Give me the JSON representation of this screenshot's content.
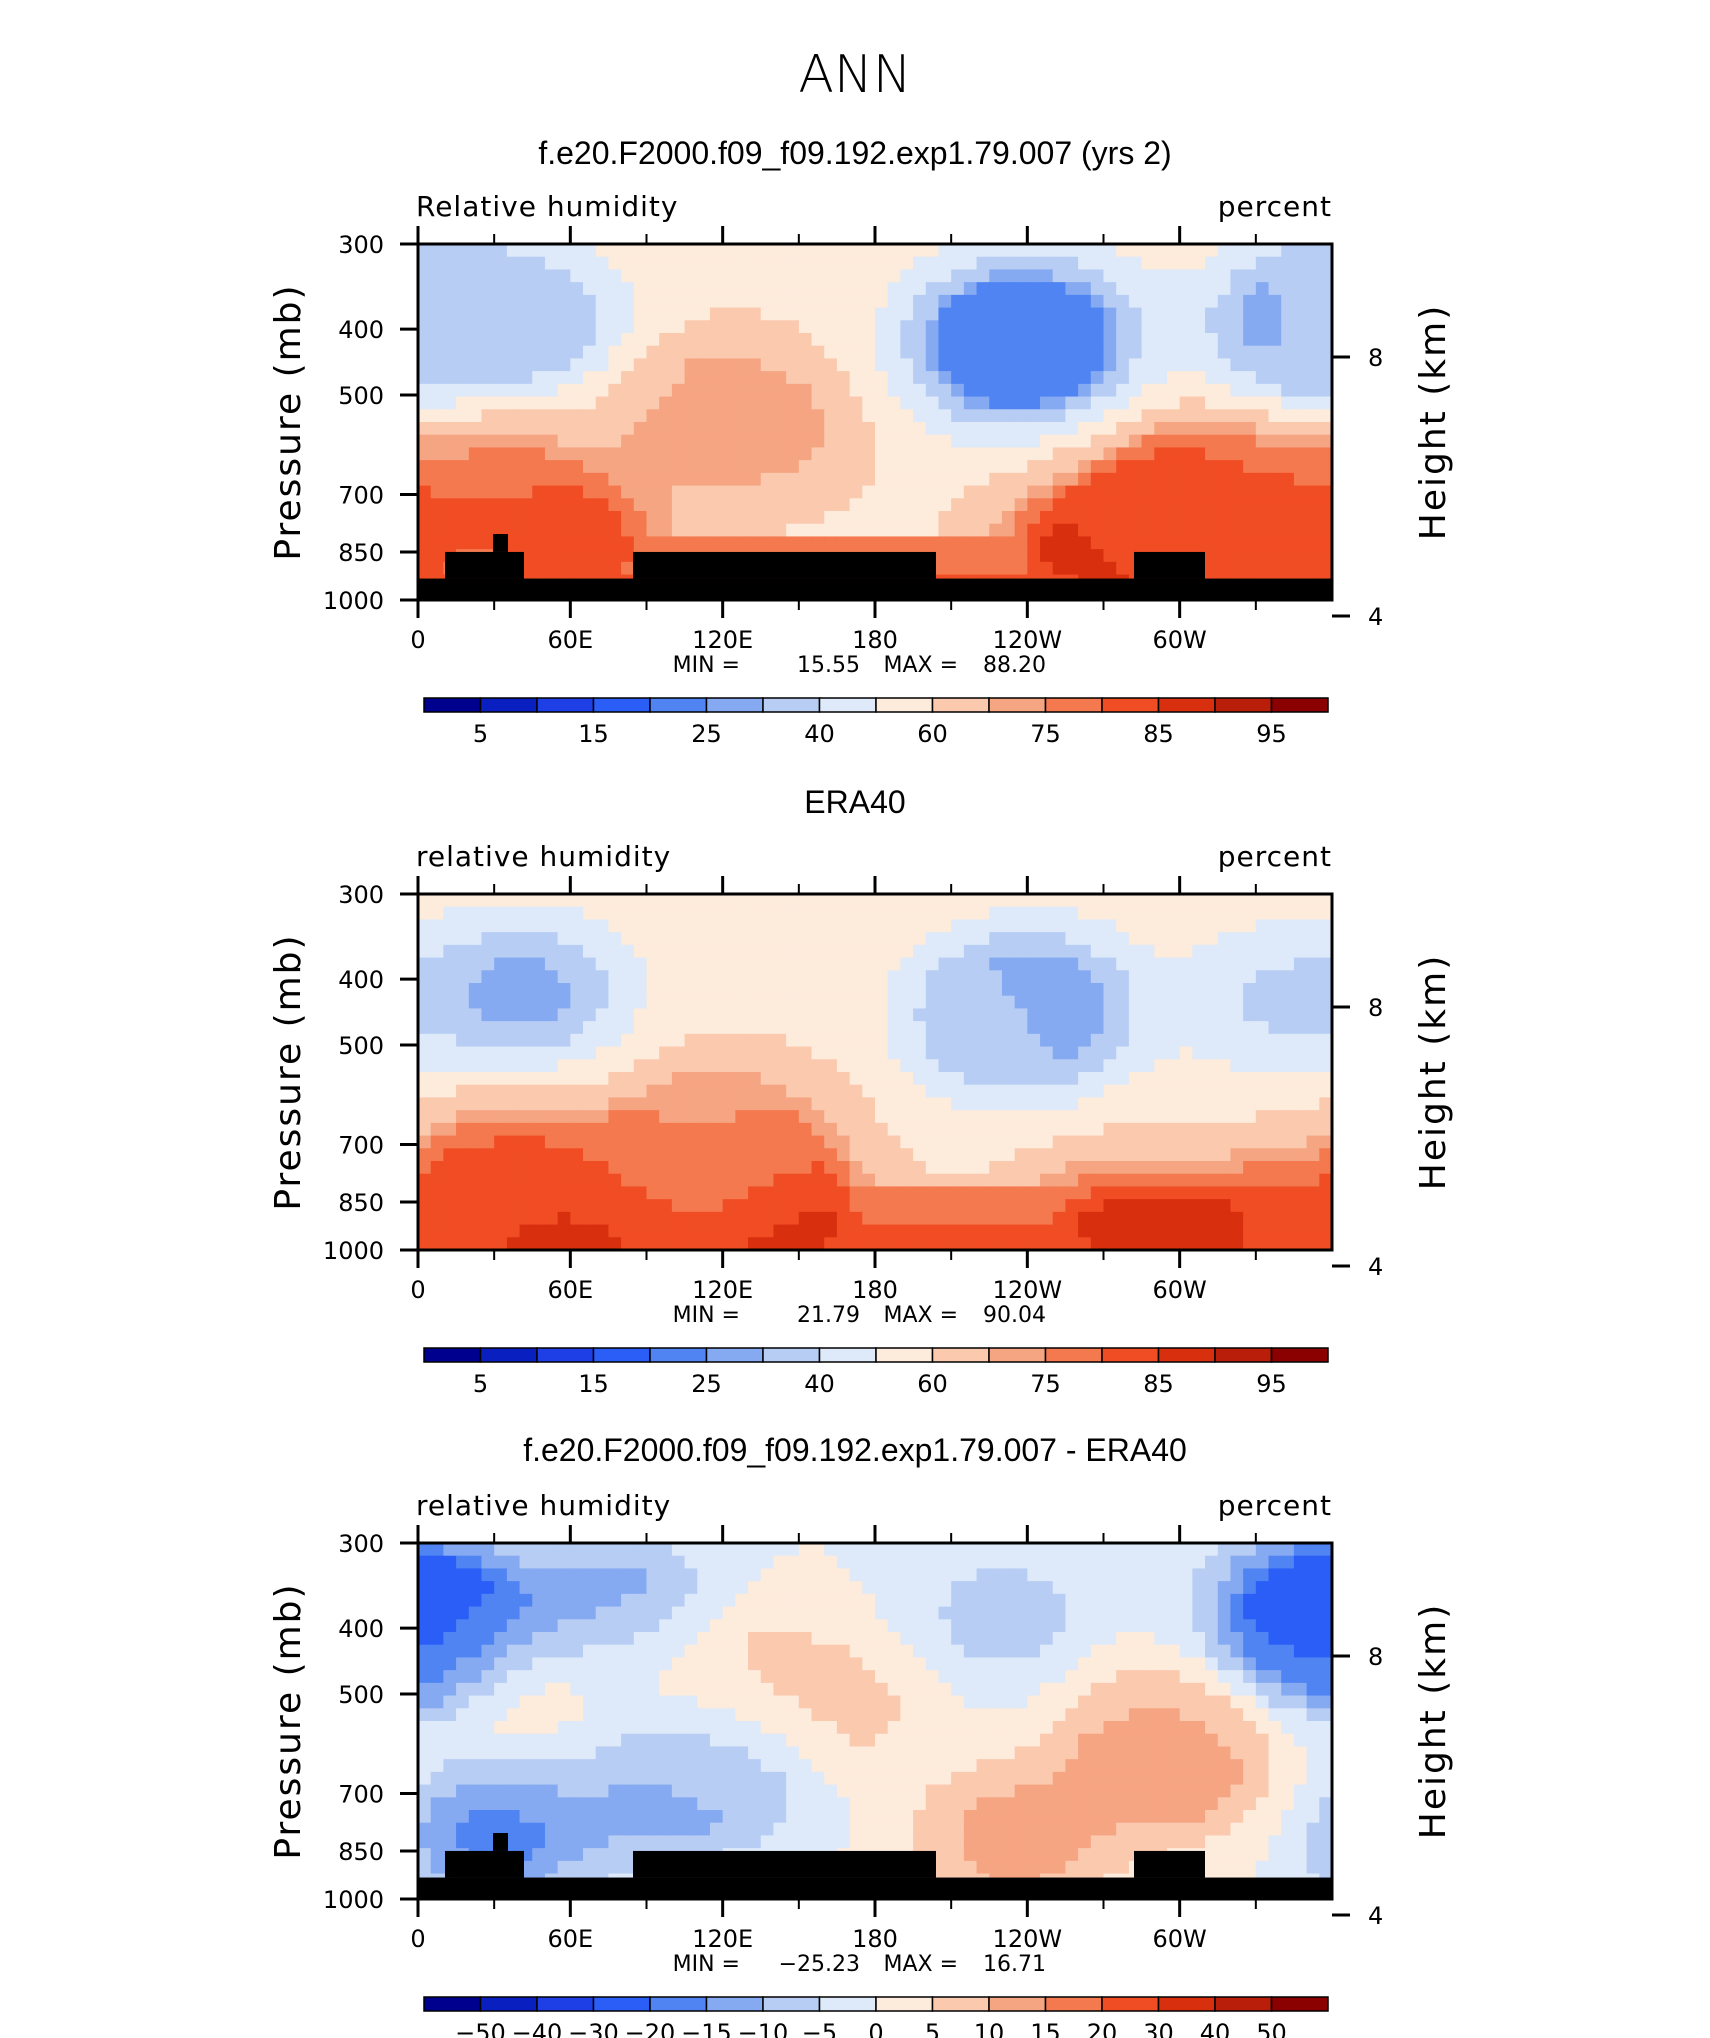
{
  "figure_title": "ANN",
  "colors": {
    "land_mask": "#000000",
    "abs_scale": [
      "#00008f",
      "#0a1fbf",
      "#1e3ee6",
      "#2a5ef7",
      "#4f84f2",
      "#86aaf1",
      "#b7cdf4",
      "#deeaf9",
      "#fdebdc",
      "#fac9ae",
      "#f6a583",
      "#f4794f",
      "#f14d24",
      "#d82f0e",
      "#b91e0b",
      "#8b0000"
    ],
    "diff_scale": [
      "#00008f",
      "#0a1fbf",
      "#1e3ee6",
      "#2a5ef7",
      "#4f84f2",
      "#86aaf1",
      "#b7cdf4",
      "#deeaf9",
      "#fdebdc",
      "#fac9ae",
      "#f6a583",
      "#f4794f",
      "#f14d24",
      "#d82f0e",
      "#b91e0b",
      "#8b0000"
    ]
  },
  "chart_data": [
    {
      "type": "heatmap",
      "title": "f.e20.F2000.f09_f09.192.exp1.79.007 (yrs 2)",
      "left_label": "Relative humidity",
      "right_label": "percent",
      "ylabel": "Pressure (mb)",
      "y2label": "Height (km)",
      "x_ticks": [
        "0",
        "60E",
        "120E",
        "180",
        "120W",
        "60W"
      ],
      "y_ticks": [
        "300",
        "400",
        "500",
        "700",
        "850",
        "1000"
      ],
      "y2_ticks": [
        "8",
        "4"
      ],
      "xlim": [
        0,
        360
      ],
      "ylim": [
        1000,
        300
      ],
      "y_scale": "log",
      "stats": {
        "min_label": "MIN =",
        "min": "15.55",
        "max_label": "MAX =",
        "max": "88.20"
      },
      "colorbar_labels": [
        "5",
        "15",
        "25",
        "40",
        "60",
        "75",
        "85",
        "95"
      ],
      "land_mask": true,
      "fields": [
        {
          "lon": 3,
          "p": 380,
          "value": 40
        },
        {
          "lon": 44,
          "p": 395,
          "value": 28
        },
        {
          "lon": 28,
          "p": 640,
          "value": 78
        },
        {
          "lon": 108,
          "p": 520,
          "value": 72
        },
        {
          "lon": 138,
          "p": 560,
          "value": 72
        },
        {
          "lon": 245,
          "p": 410,
          "value": 18
        },
        {
          "lon": 228,
          "p": 430,
          "value": 25
        },
        {
          "lon": 350,
          "p": 400,
          "value": 22
        },
        {
          "lon": 320,
          "p": 690,
          "value": 78
        },
        {
          "lon": 300,
          "p": 720,
          "value": 84
        },
        {
          "lon": 65,
          "p": 850,
          "value": 85
        },
        {
          "lon": 260,
          "p": 850,
          "value": 86
        },
        {
          "lon": 340,
          "p": 850,
          "value": 86
        }
      ]
    },
    {
      "type": "heatmap",
      "title": "ERA40",
      "left_label": "relative humidity",
      "right_label": "percent",
      "ylabel": "Pressure (mb)",
      "y2label": "Height (km)",
      "x_ticks": [
        "0",
        "60E",
        "120E",
        "180",
        "120W",
        "60W"
      ],
      "y_ticks": [
        "300",
        "400",
        "500",
        "700",
        "850",
        "1000"
      ],
      "y2_ticks": [
        "8",
        "4"
      ],
      "xlim": [
        0,
        360
      ],
      "ylim": [
        1000,
        300
      ],
      "y_scale": "log",
      "stats": {
        "min_label": "MIN =",
        "min": "21.79",
        "max_label": "MAX =",
        "max": "90.04"
      },
      "colorbar_labels": [
        "5",
        "15",
        "25",
        "40",
        "60",
        "75",
        "85",
        "95"
      ],
      "land_mask": false,
      "fields": [
        {
          "lon": 44,
          "p": 420,
          "value": 25
        },
        {
          "lon": 245,
          "p": 440,
          "value": 26
        },
        {
          "lon": 230,
          "p": 460,
          "value": 34
        },
        {
          "lon": 340,
          "p": 430,
          "value": 38
        },
        {
          "lon": 100,
          "p": 700,
          "value": 75
        },
        {
          "lon": 130,
          "p": 680,
          "value": 74
        },
        {
          "lon": 30,
          "p": 750,
          "value": 80
        },
        {
          "lon": 60,
          "p": 930,
          "value": 88
        },
        {
          "lon": 150,
          "p": 930,
          "value": 88
        },
        {
          "lon": 270,
          "p": 930,
          "value": 86
        },
        {
          "lon": 330,
          "p": 920,
          "value": 85
        }
      ]
    },
    {
      "type": "heatmap",
      "title": "f.e20.F2000.f09_f09.192.exp1.79.007 - ERA40",
      "left_label": "relative humidity",
      "right_label": "percent",
      "ylabel": "Pressure (mb)",
      "y2label": "Height (km)",
      "x_ticks": [
        "0",
        "60E",
        "120E",
        "180",
        "120W",
        "60W"
      ],
      "y_ticks": [
        "300",
        "400",
        "500",
        "700",
        "850",
        "1000"
      ],
      "y2_ticks": [
        "8",
        "4"
      ],
      "xlim": [
        0,
        360
      ],
      "ylim": [
        1000,
        300
      ],
      "y_scale": "log",
      "stats": {
        "min_label": "MIN =",
        "min": "−25.23",
        "max_label": "MAX =",
        "max": "16.71"
      },
      "colorbar_labels": [
        "−50",
        "−40",
        "−30",
        "−20",
        "−15",
        "−10",
        "−5",
        "0",
        "5",
        "10",
        "15",
        "20",
        "30",
        "40",
        "50"
      ],
      "land_mask": true,
      "fields": [
        {
          "lon": 8,
          "p": 400,
          "value": -25
        },
        {
          "lon": 82,
          "p": 380,
          "value": -15
        },
        {
          "lon": 350,
          "p": 380,
          "value": -20
        },
        {
          "lon": 230,
          "p": 390,
          "value": -8
        },
        {
          "lon": 90,
          "p": 660,
          "value": -12
        },
        {
          "lon": 120,
          "p": 650,
          "value": -10
        },
        {
          "lon": 30,
          "p": 800,
          "value": -18
        },
        {
          "lon": 45,
          "p": 520,
          "value": 8
        },
        {
          "lon": 165,
          "p": 520,
          "value": 8
        },
        {
          "lon": 112,
          "p": 460,
          "value": 10
        },
        {
          "lon": 235,
          "p": 820,
          "value": 14
        },
        {
          "lon": 290,
          "p": 560,
          "value": 10
        },
        {
          "lon": 300,
          "p": 650,
          "value": 12
        }
      ]
    }
  ]
}
